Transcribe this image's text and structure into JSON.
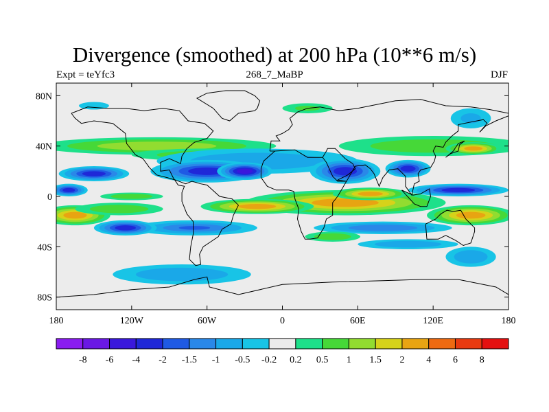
{
  "chart_data": {
    "type": "heatmap",
    "title": "Divergence (smoothed) at 200 hPa (10**6 m/s)",
    "subtitle_left": "Expt = teYfc3",
    "subtitle_center": "268_7_MaBP",
    "subtitle_right": "DJF",
    "x_ticks": [
      "180",
      "120W",
      "60W",
      "0",
      "60E",
      "120E",
      "180"
    ],
    "x_tick_values": [
      -180,
      -120,
      -60,
      0,
      60,
      120,
      180
    ],
    "y_ticks": [
      "80N",
      "40N",
      "0",
      "40S",
      "80S"
    ],
    "y_tick_values": [
      80,
      40,
      0,
      -40,
      -80
    ],
    "xlim": [
      -180,
      180
    ],
    "ylim": [
      -90,
      90
    ],
    "colorbar_labels": [
      "-8",
      "-6",
      "-4",
      "-2",
      "-1.5",
      "-1",
      "-0.5",
      "-0.2",
      "0.2",
      "0.5",
      "1",
      "1.5",
      "2",
      "4",
      "6",
      "8"
    ],
    "levels": [
      -8,
      -6,
      -4,
      -2,
      -1.5,
      -1,
      -0.5,
      -0.2,
      0.2,
      0.5,
      1,
      1.5,
      2,
      4,
      6,
      8
    ],
    "colors": [
      "#8a1cf0",
      "#6a18e4",
      "#3a18dc",
      "#1f28d8",
      "#1f5ae4",
      "#2a88e8",
      "#1aa8e8",
      "#18c4e6",
      "#ececec",
      "#1ee08a",
      "#46d838",
      "#92dc30",
      "#d6d21a",
      "#e8a412",
      "#ee6a12",
      "#e83a10",
      "#e41010"
    ],
    "fields": [
      {
        "lon": -100,
        "lat": 40,
        "rx": 95,
        "ry": 7,
        "value": 1.2
      },
      {
        "lon": 120,
        "lat": 40,
        "rx": 75,
        "ry": 8,
        "value": 0.9
      },
      {
        "lon": 152,
        "lat": 38,
        "rx": 22,
        "ry": 5,
        "value": 3.0
      },
      {
        "lon": -60,
        "lat": 33,
        "rx": 60,
        "ry": 5,
        "value": 0.6
      },
      {
        "lon": -20,
        "lat": 28,
        "rx": 80,
        "ry": 10,
        "value": -0.7
      },
      {
        "lon": -60,
        "lat": 20,
        "rx": 45,
        "ry": 9,
        "value": -3.0
      },
      {
        "lon": -30,
        "lat": 20,
        "rx": 22,
        "ry": 7,
        "value": -5.0
      },
      {
        "lon": 50,
        "lat": 20,
        "rx": 28,
        "ry": 10,
        "value": -3.0
      },
      {
        "lon": 100,
        "lat": 22,
        "rx": 18,
        "ry": 7,
        "value": -2.5
      },
      {
        "lon": -150,
        "lat": 18,
        "rx": 28,
        "ry": 6,
        "value": -2.2
      },
      {
        "lon": 140,
        "lat": 5,
        "rx": 40,
        "ry": 5,
        "value": -3.0
      },
      {
        "lon": -170,
        "lat": 5,
        "rx": 15,
        "ry": 5,
        "value": -2.5
      },
      {
        "lon": -120,
        "lat": 0,
        "rx": 25,
        "ry": 3,
        "value": 0.7
      },
      {
        "lon": 50,
        "lat": -5,
        "rx": 80,
        "ry": 10,
        "value": 2.5
      },
      {
        "lon": -20,
        "lat": -8,
        "rx": 45,
        "ry": 6,
        "value": 3.0
      },
      {
        "lon": 70,
        "lat": 2,
        "rx": 30,
        "ry": 5,
        "value": 2.2
      },
      {
        "lon": -165,
        "lat": -15,
        "rx": 28,
        "ry": 8,
        "value": 2.5
      },
      {
        "lon": 150,
        "lat": -15,
        "rx": 35,
        "ry": 8,
        "value": 2.2
      },
      {
        "lon": -130,
        "lat": -10,
        "rx": 35,
        "ry": 5,
        "value": 0.6
      },
      {
        "lon": -70,
        "lat": -25,
        "rx": 50,
        "ry": 6,
        "value": -1.5
      },
      {
        "lon": -125,
        "lat": -25,
        "rx": 25,
        "ry": 6,
        "value": -2.5
      },
      {
        "lon": 80,
        "lat": -25,
        "rx": 55,
        "ry": 5,
        "value": -1.3
      },
      {
        "lon": 40,
        "lat": -32,
        "rx": 22,
        "ry": 4,
        "value": 0.7
      },
      {
        "lon": 100,
        "lat": -38,
        "rx": 40,
        "ry": 4,
        "value": -0.6
      },
      {
        "lon": -80,
        "lat": -62,
        "rx": 55,
        "ry": 8,
        "value": -0.8
      },
      {
        "lon": 150,
        "lat": -48,
        "rx": 20,
        "ry": 8,
        "value": -0.7
      },
      {
        "lon": 150,
        "lat": 62,
        "rx": 16,
        "ry": 8,
        "value": -0.5
      },
      {
        "lon": -150,
        "lat": 72,
        "rx": 12,
        "ry": 3,
        "value": -0.4
      },
      {
        "lon": 20,
        "lat": 70,
        "rx": 20,
        "ry": 4,
        "value": 0.5
      }
    ],
    "coastline": [
      [
        [
          -168,
          66
        ],
        [
          -155,
          71
        ],
        [
          -140,
          70
        ],
        [
          -125,
          70
        ],
        [
          -110,
          68
        ],
        [
          -95,
          70
        ],
        [
          -82,
          68
        ],
        [
          -75,
          60
        ],
        [
          -62,
          58
        ],
        [
          -55,
          52
        ],
        [
          -60,
          46
        ],
        [
          -70,
          43
        ],
        [
          -76,
          38
        ],
        [
          -80,
          32
        ],
        [
          -81,
          26
        ],
        [
          -90,
          30
        ],
        [
          -97,
          27
        ],
        [
          -97,
          20
        ],
        [
          -90,
          21
        ],
        [
          -87,
          15
        ],
        [
          -83,
          9
        ],
        [
          -78,
          8
        ],
        [
          -80,
          3
        ],
        [
          -80,
          -4
        ],
        [
          -76,
          -14
        ],
        [
          -71,
          -20
        ],
        [
          -71,
          -30
        ],
        [
          -73,
          -40
        ],
        [
          -74,
          -50
        ],
        [
          -69,
          -55
        ],
        [
          -65,
          -54
        ],
        [
          -66,
          -46
        ],
        [
          -63,
          -40
        ],
        [
          -57,
          -36
        ],
        [
          -51,
          -32
        ],
        [
          -48,
          -26
        ],
        [
          -41,
          -22
        ],
        [
          -39,
          -15
        ],
        [
          -35,
          -7
        ],
        [
          -40,
          -2
        ],
        [
          -50,
          0
        ],
        [
          -60,
          9
        ],
        [
          -65,
          10
        ],
        [
          -72,
          12
        ],
        [
          -77,
          10
        ],
        [
          -85,
          13
        ],
        [
          -92,
          15
        ],
        [
          -100,
          17
        ],
        [
          -106,
          23
        ],
        [
          -111,
          30
        ],
        [
          -117,
          33
        ],
        [
          -120,
          37
        ],
        [
          -124,
          42
        ],
        [
          -125,
          50
        ],
        [
          -135,
          58
        ],
        [
          -150,
          60
        ],
        [
          -160,
          58
        ],
        [
          -165,
          62
        ],
        [
          -168,
          66
        ]
      ],
      [
        [
          -20,
          70
        ],
        [
          -18,
          76
        ],
        [
          -22,
          80
        ],
        [
          -30,
          84
        ],
        [
          -45,
          84
        ],
        [
          -60,
          82
        ],
        [
          -68,
          78
        ],
        [
          -55,
          70
        ],
        [
          -48,
          62
        ],
        [
          -42,
          60
        ],
        [
          -35,
          66
        ],
        [
          -22,
          68
        ],
        [
          -20,
          70
        ]
      ],
      [
        [
          -10,
          36
        ],
        [
          -6,
          36
        ],
        [
          -15,
          28
        ],
        [
          -17,
          22
        ],
        [
          -17,
          15
        ],
        [
          -12,
          8
        ],
        [
          -5,
          5
        ],
        [
          5,
          5
        ],
        [
          9,
          4
        ],
        [
          10,
          -2
        ],
        [
          13,
          -10
        ],
        [
          12,
          -18
        ],
        [
          15,
          -28
        ],
        [
          18,
          -34
        ],
        [
          22,
          -34
        ],
        [
          28,
          -33
        ],
        [
          33,
          -25
        ],
        [
          35,
          -18
        ],
        [
          40,
          -15
        ],
        [
          40,
          -5
        ],
        [
          44,
          0
        ],
        [
          51,
          12
        ],
        [
          44,
          12
        ],
        [
          40,
          16
        ],
        [
          35,
          27
        ],
        [
          32,
          31
        ],
        [
          20,
          31
        ],
        [
          10,
          37
        ],
        [
          -6,
          36
        ],
        [
          -10,
          36
        ]
      ],
      [
        [
          -10,
          36
        ],
        [
          -9,
          44
        ],
        [
          -2,
          44
        ],
        [
          -5,
          48
        ],
        [
          0,
          50
        ],
        [
          5,
          53
        ],
        [
          8,
          57
        ],
        [
          6,
          62
        ],
        [
          12,
          67
        ],
        [
          20,
          70
        ],
        [
          30,
          71
        ],
        [
          45,
          68
        ],
        [
          60,
          70
        ],
        [
          75,
          73
        ],
        [
          90,
          76
        ],
        [
          110,
          77
        ],
        [
          130,
          72
        ],
        [
          150,
          71
        ],
        [
          165,
          69
        ],
        [
          180,
          66
        ]
      ],
      [
        [
          32,
          31
        ],
        [
          35,
          36
        ],
        [
          36,
          38
        ],
        [
          42,
          38
        ],
        [
          50,
          30
        ],
        [
          56,
          26
        ],
        [
          58,
          22
        ],
        [
          52,
          17
        ],
        [
          44,
          13
        ],
        [
          51,
          12
        ],
        [
          58,
          24
        ],
        [
          66,
          25
        ],
        [
          70,
          22
        ],
        [
          73,
          18
        ],
        [
          77,
          8
        ],
        [
          80,
          15
        ],
        [
          85,
          21
        ],
        [
          92,
          22
        ],
        [
          98,
          16
        ],
        [
          98,
          8
        ],
        [
          103,
          1
        ],
        [
          105,
          10
        ],
        [
          109,
          12
        ],
        [
          108,
          18
        ],
        [
          110,
          21
        ],
        [
          118,
          23
        ],
        [
          121,
          28
        ],
        [
          122,
          32
        ],
        [
          120,
          36
        ],
        [
          122,
          40
        ],
        [
          128,
          39
        ],
        [
          130,
          43
        ],
        [
          135,
          48
        ],
        [
          140,
          52
        ],
        [
          140,
          57
        ],
        [
          150,
          59
        ],
        [
          160,
          61
        ],
        [
          163,
          58
        ],
        [
          157,
          51
        ],
        [
          162,
          56
        ],
        [
          170,
          60
        ],
        [
          180,
          64
        ]
      ],
      [
        [
          114,
          -22
        ],
        [
          115,
          -34
        ],
        [
          124,
          -34
        ],
        [
          130,
          -31
        ],
        [
          138,
          -35
        ],
        [
          144,
          -39
        ],
        [
          150,
          -37
        ],
        [
          153,
          -28
        ],
        [
          153,
          -25
        ],
        [
          146,
          -18
        ],
        [
          142,
          -11
        ],
        [
          136,
          -12
        ],
        [
          131,
          -11
        ],
        [
          126,
          -14
        ],
        [
          122,
          -18
        ],
        [
          114,
          -22
        ]
      ],
      [
        [
          95,
          5
        ],
        [
          105,
          -6
        ],
        [
          110,
          -8
        ],
        [
          115,
          -8
        ],
        [
          118,
          0
        ],
        [
          117,
          6
        ],
        [
          110,
          2
        ],
        [
          104,
          1
        ],
        [
          95,
          5
        ]
      ],
      [
        [
          130,
          31
        ],
        [
          134,
          34
        ],
        [
          140,
          36
        ],
        [
          141,
          41
        ],
        [
          145,
          44
        ],
        [
          140,
          42
        ],
        [
          136,
          36
        ],
        [
          130,
          31
        ]
      ],
      [
        [
          -180,
          -80
        ],
        [
          -150,
          -78
        ],
        [
          -120,
          -74
        ],
        [
          -90,
          -72
        ],
        [
          -70,
          -66
        ],
        [
          -60,
          -64
        ],
        [
          -58,
          -72
        ],
        [
          -35,
          -78
        ],
        [
          0,
          -70
        ],
        [
          40,
          -68
        ],
        [
          80,
          -67
        ],
        [
          110,
          -66
        ],
        [
          140,
          -66
        ],
        [
          170,
          -72
        ],
        [
          180,
          -78
        ]
      ]
    ]
  }
}
